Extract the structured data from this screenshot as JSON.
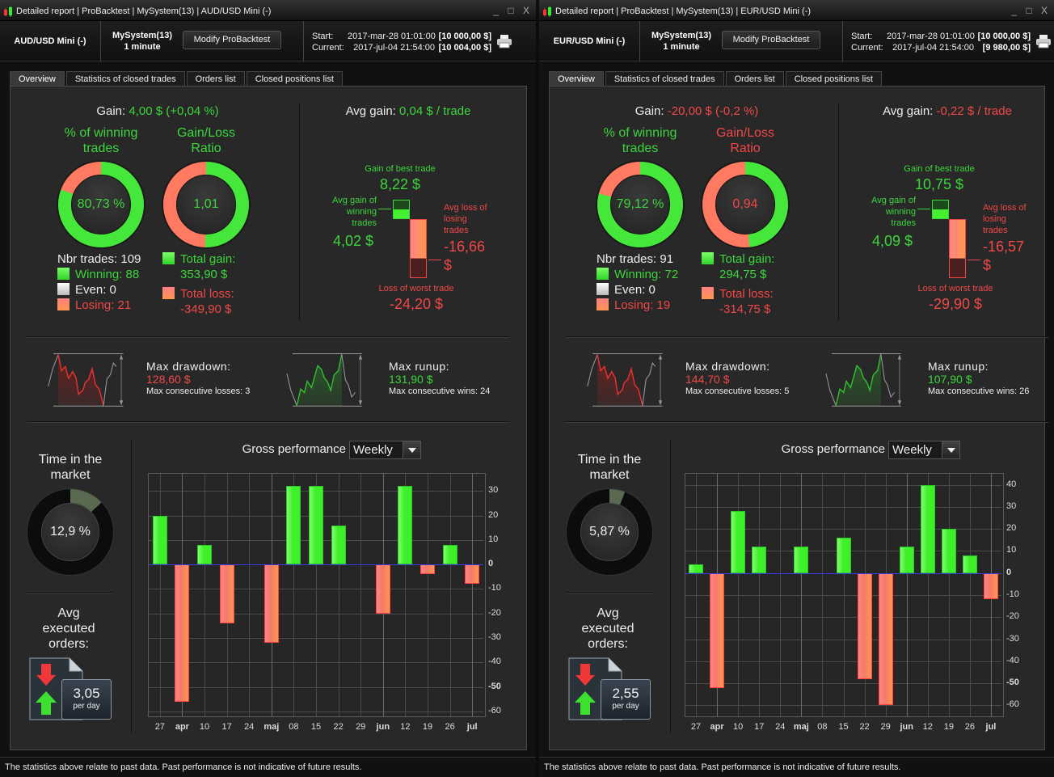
{
  "panels": [
    {
      "window_title": "Detailed report | ProBacktest | MySystem(13) | AUD/USD Mini (-)",
      "window_controls": "_ □ X",
      "header": {
        "instrument": "AUD/USD Mini (-)",
        "system": "MySystem(13)",
        "timeframe": "1 minute",
        "modify_button": "Modify ProBacktest",
        "start_label": "Start:",
        "start_date": "2017-mar-28 01:01:00",
        "start_capital": "[10 000,00 $]",
        "current_label": "Current:",
        "current_date": "2017-jul-04 21:54:00",
        "current_capital": "[10 004,00 $]"
      },
      "tabs": [
        "Overview",
        "Statistics of closed trades",
        "Orders list",
        "Closed positions list"
      ],
      "result_color": "#3cd63c",
      "gain": {
        "label": "Gain:",
        "value": "4,00 $ (+0,04 %)"
      },
      "avg_gain": {
        "label": "Avg gain:",
        "value": "0,04 $ / trade"
      },
      "win_pct": {
        "title": "% of winning trades",
        "value": "80,73 %",
        "fraction": 0.8073
      },
      "ratio": {
        "title": "Gain/Loss Ratio",
        "value": "1,01",
        "fraction": 0.503
      },
      "trades": {
        "nbr": "Nbr trades: 109",
        "winning": "Winning: 88",
        "even": "Even: 0",
        "losing": "Losing: 21"
      },
      "totals": {
        "gain_label": "Total gain:",
        "gain": "353,90 $",
        "loss_label": "Total loss:",
        "loss": "-349,90 $"
      },
      "best": {
        "label": "Gain of best trade",
        "value": "8,22 $"
      },
      "avg_win": {
        "label": "Avg gain of winning trades",
        "value": "4,02 $"
      },
      "avg_loss": {
        "label": "Avg loss of losing trades",
        "value": "-16,66 $"
      },
      "worst": {
        "label": "Loss of worst trade",
        "value": "-24,20 $"
      },
      "drawdown": {
        "label": "Max drawdown:",
        "value": "128,60 $",
        "consec": "Max consecutive losses: 3"
      },
      "runup": {
        "label": "Max runup:",
        "value": "131,90 $",
        "consec": "Max consecutive wins: 24"
      },
      "time_in_market": {
        "label": "Time in the market",
        "value": "12,9 %",
        "fraction": 0.129
      },
      "orders": {
        "label": "Avg executed orders:",
        "value": "3,05",
        "unit": "per day"
      },
      "perf": {
        "label": "Gross performance",
        "period": "Weekly"
      },
      "footer": "The statistics above relate to past data. Past performance is not indicative of future results."
    },
    {
      "window_title": "Detailed report | ProBacktest | MySystem(13) | EUR/USD Mini (-)",
      "window_controls": "_ □ X",
      "header": {
        "instrument": "EUR/USD Mini (-)",
        "system": "MySystem(13)",
        "timeframe": "1 minute",
        "modify_button": "Modify ProBacktest",
        "start_label": "Start:",
        "start_date": "2017-mar-28 01:01:00",
        "start_capital": "[10 000,00 $]",
        "current_label": "Current:",
        "current_date": "2017-jul-04 21:54:00",
        "current_capital": "[9 980,00 $]"
      },
      "tabs": [
        "Overview",
        "Statistics of closed trades",
        "Orders list",
        "Closed positions list"
      ],
      "result_color": "#f04848",
      "gain": {
        "label": "Gain:",
        "value": "-20,00 $ (-0,2 %)"
      },
      "avg_gain": {
        "label": "Avg gain:",
        "value": "-0,22 $ / trade"
      },
      "win_pct": {
        "title": "% of winning trades",
        "value": "79,12 %",
        "fraction": 0.7912
      },
      "ratio": {
        "title": "Gain/Loss Ratio",
        "value": "0,94",
        "fraction": 0.484
      },
      "trades": {
        "nbr": "Nbr trades: 91",
        "winning": "Winning: 72",
        "even": "Even: 0",
        "losing": "Losing: 19"
      },
      "totals": {
        "gain_label": "Total gain:",
        "gain": "294,75 $",
        "loss_label": "Total loss:",
        "loss": "-314,75 $"
      },
      "best": {
        "label": "Gain of best trade",
        "value": "10,75 $"
      },
      "avg_win": {
        "label": "Avg gain of winning trades",
        "value": "4,09 $"
      },
      "avg_loss": {
        "label": "Avg loss of losing trades",
        "value": "-16,57 $"
      },
      "worst": {
        "label": "Loss of worst trade",
        "value": "-29,90 $"
      },
      "drawdown": {
        "label": "Max drawdown:",
        "value": "144,70 $",
        "consec": "Max consecutive losses: 5"
      },
      "runup": {
        "label": "Max runup:",
        "value": "107,90 $",
        "consec": "Max consecutive wins: 26"
      },
      "time_in_market": {
        "label": "Time in the market",
        "value": "5,87 %",
        "fraction": 0.0587
      },
      "orders": {
        "label": "Avg executed orders:",
        "value": "2,55",
        "unit": "per day"
      },
      "perf": {
        "label": "Gross performance",
        "period": "Weekly"
      },
      "footer": "The statistics above relate to past data. Past performance is not indicative of future results."
    }
  ],
  "colors": {
    "green": "#3ef02a",
    "red": "#ff5050",
    "zero_line": "#3a3adf"
  },
  "chart_data": [
    {
      "type": "bar",
      "title": "Gross performance",
      "categories": [
        "27",
        "apr",
        "10",
        "17",
        "24",
        "maj",
        "08",
        "15",
        "22",
        "29",
        "jun",
        "12",
        "19",
        "26",
        "jul"
      ],
      "values": [
        20,
        -56,
        8,
        -24,
        0,
        -32,
        32,
        32,
        16,
        0,
        -20,
        32,
        -4,
        8,
        -8
      ],
      "yticks": [
        30,
        20,
        10,
        0,
        -10,
        -20,
        -30,
        -40,
        -50,
        -60
      ],
      "ylim": [
        -62,
        37
      ],
      "grid": true
    },
    {
      "type": "bar",
      "title": "Gross performance",
      "categories": [
        "27",
        "apr",
        "10",
        "17",
        "24",
        "maj",
        "08",
        "15",
        "22",
        "29",
        "jun",
        "12",
        "19",
        "26",
        "jul"
      ],
      "values": [
        4,
        -52,
        28,
        12,
        0,
        12,
        0,
        16,
        -48,
        -60,
        12,
        40,
        20,
        8,
        -12
      ],
      "yticks": [
        40,
        30,
        20,
        10,
        0,
        -10,
        -20,
        -30,
        -40,
        -50,
        -60
      ],
      "ylim": [
        -65,
        45
      ],
      "grid": true
    }
  ]
}
